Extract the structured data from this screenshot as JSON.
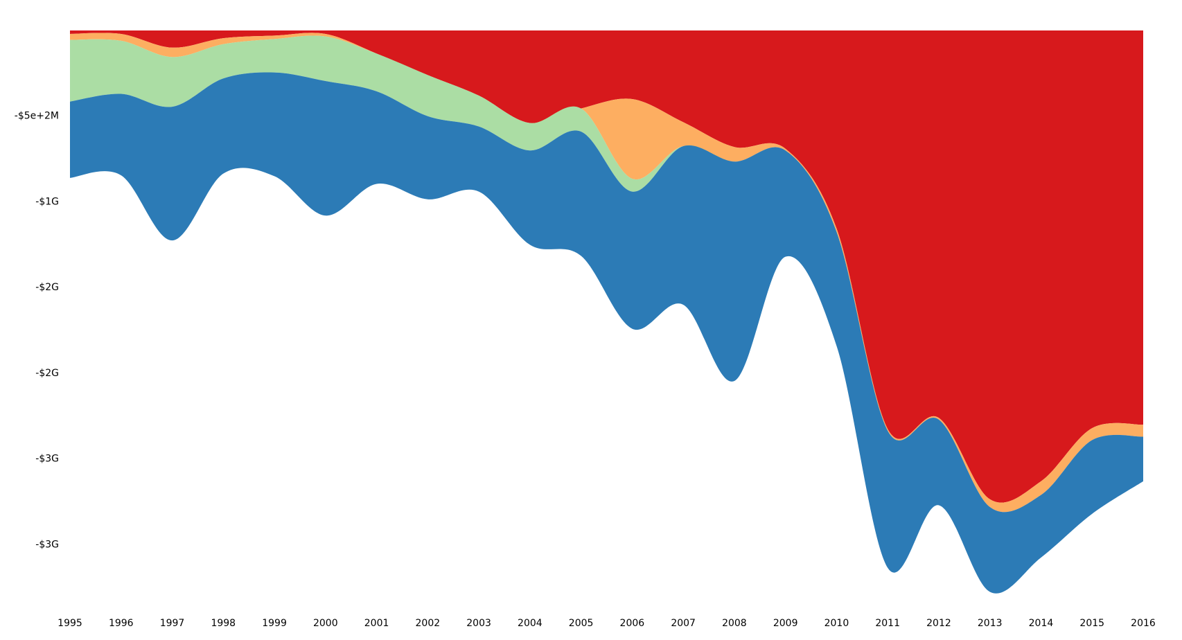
{
  "chart_data": {
    "type": "stacked-area",
    "x": [
      1995,
      1996,
      1997,
      1998,
      1999,
      2000,
      2001,
      2002,
      2003,
      2004,
      2005,
      2006,
      2007,
      2008,
      2009,
      2010,
      2011,
      2012,
      2013,
      2014,
      2015,
      2016
    ],
    "series": [
      {
        "color": "#d7191c",
        "values": [
          -20000000,
          -20000000,
          -100000000,
          -45000000,
          -30000000,
          -20000000,
          -135000000,
          -260000000,
          -380000000,
          -540000000,
          -455000000,
          -400000000,
          -535000000,
          -680000000,
          -690000000,
          -1155000000,
          -2325000000,
          -2260000000,
          -2735000000,
          -2630000000,
          -2320000000,
          -2300000000
        ]
      },
      {
        "color": "#fdae61",
        "values": [
          -35000000,
          -40000000,
          -55000000,
          -35000000,
          -20000000,
          -15000000,
          0,
          0,
          0,
          0,
          0,
          -465000000,
          -140000000,
          -85000000,
          -10000000,
          -20000000,
          -10000000,
          -10000000,
          -45000000,
          -80000000,
          -70000000,
          -70000000
        ]
      },
      {
        "color": "#abdda4",
        "values": [
          -360000000,
          -310000000,
          -290000000,
          -200000000,
          -195000000,
          -260000000,
          -220000000,
          -240000000,
          -180000000,
          -160000000,
          -135000000,
          -75000000,
          0,
          0,
          0,
          0,
          0,
          0,
          0,
          0,
          0,
          0
        ]
      },
      {
        "color": "#2c7bb6",
        "values": [
          -445000000,
          -475000000,
          -780000000,
          -555000000,
          -605000000,
          -785000000,
          -540000000,
          -485000000,
          -380000000,
          -550000000,
          -725000000,
          -800000000,
          -925000000,
          -1280000000,
          -620000000,
          -665000000,
          -800000000,
          -500000000,
          -495000000,
          -365000000,
          -430000000,
          -260000000
        ]
      }
    ],
    "ylim": [
      -3350000000,
      0
    ],
    "yticks": [
      {
        "value": -500000000,
        "label": "-$5e+2M"
      },
      {
        "value": -1000000000,
        "label": "-$1G"
      },
      {
        "value": -1500000000,
        "label": "-$2G"
      },
      {
        "value": -2000000000,
        "label": "-$2G"
      },
      {
        "value": -2500000000,
        "label": "-$3G"
      },
      {
        "value": -3000000000,
        "label": "-$3G"
      }
    ]
  }
}
